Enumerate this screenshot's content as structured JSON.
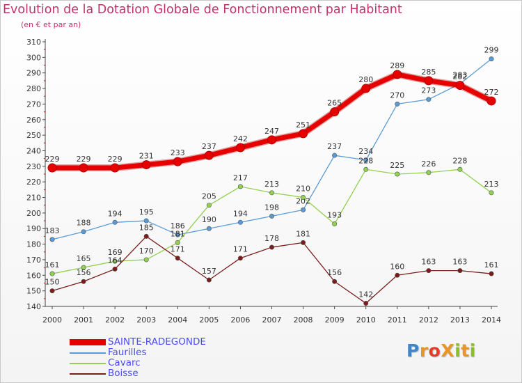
{
  "header": {
    "title": "Evolution de la Dotation Globale de Fonctionnement par Habitant",
    "subtitle": "(en € et par an)"
  },
  "logo": {
    "text": "ProXiti",
    "colors": [
      "#3f86c6",
      "#e8962a",
      "#e0402a",
      "#e8962a",
      "#8cbd2e",
      "#e8962a",
      "#8cbd2e"
    ]
  },
  "chart_data": {
    "type": "line",
    "title": "Evolution de la Dotation Globale de Fonctionnement par Habitant",
    "subtitle": "(en € et par an)",
    "xlabel": "",
    "ylabel": "",
    "ylim": [
      140,
      310
    ],
    "ytick_step": 10,
    "grid": false,
    "legend_position": "bottom-left",
    "x": [
      2000,
      2001,
      2002,
      2003,
      2004,
      2005,
      2006,
      2007,
      2008,
      2009,
      2010,
      2011,
      2012,
      2013,
      2014
    ],
    "series": [
      {
        "name": "SAINTE-RADEGONDE",
        "color": "#e60000",
        "emphasis": true,
        "values": [
          229,
          229,
          229,
          231,
          233,
          237,
          242,
          247,
          251,
          265,
          280,
          289,
          285,
          282,
          272
        ]
      },
      {
        "name": "Faurilles",
        "color": "#5b9bd5",
        "emphasis": false,
        "values": [
          183,
          188,
          194,
          195,
          186,
          190,
          194,
          198,
          202,
          237,
          234,
          270,
          273,
          283,
          299
        ]
      },
      {
        "name": "Cavarc",
        "color": "#92d050",
        "emphasis": false,
        "values": [
          161,
          165,
          169,
          170,
          181,
          205,
          217,
          213,
          210,
          193,
          228,
          225,
          226,
          228,
          213
        ]
      },
      {
        "name": "Boisse",
        "color": "#7b1c1c",
        "emphasis": false,
        "values": [
          150,
          156,
          164,
          185,
          171,
          157,
          171,
          178,
          181,
          156,
          142,
          160,
          163,
          163,
          161
        ]
      }
    ]
  }
}
